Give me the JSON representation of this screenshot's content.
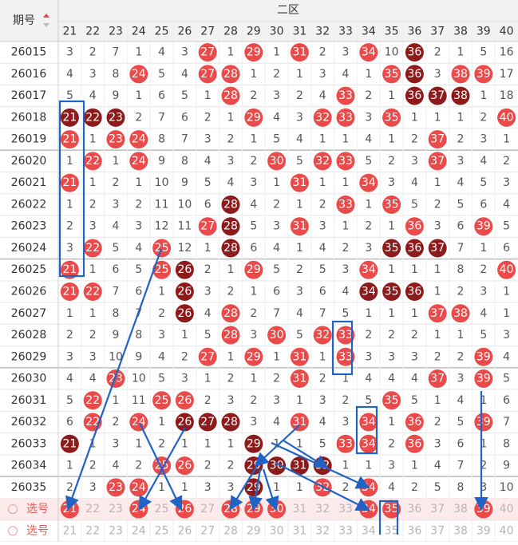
{
  "header": {
    "issue_label": "期号",
    "zone_label": "二区",
    "columns": [
      21,
      22,
      23,
      24,
      25,
      26,
      27,
      28,
      29,
      30,
      31,
      32,
      33,
      34,
      35,
      36,
      37,
      38,
      39,
      40
    ]
  },
  "ball_colors": {
    "r": "#ea4a4a",
    "d": "#8e1b1b"
  },
  "rows": [
    {
      "issue": "26015",
      "values": [
        3,
        2,
        7,
        1,
        4,
        3,
        27,
        1,
        29,
        1,
        31,
        2,
        3,
        34,
        10,
        36,
        2,
        1,
        5,
        16
      ],
      "balls": "......r.r.r..r.d...."
    },
    {
      "issue": "26016",
      "values": [
        4,
        3,
        8,
        24,
        5,
        4,
        27,
        28,
        1,
        2,
        1,
        3,
        4,
        1,
        35,
        36,
        3,
        38,
        39,
        17
      ],
      "balls": "...r..rr......rd.rr."
    },
    {
      "issue": "26017",
      "values": [
        5,
        4,
        9,
        1,
        6,
        5,
        1,
        28,
        2,
        3,
        2,
        4,
        33,
        2,
        1,
        36,
        37,
        38,
        1,
        18
      ],
      "balls": ".......r....r..ddd.."
    },
    {
      "issue": "26018",
      "values": [
        21,
        22,
        23,
        2,
        7,
        6,
        2,
        1,
        29,
        4,
        3,
        32,
        33,
        3,
        35,
        1,
        1,
        1,
        2,
        40
      ],
      "balls": "ddd.....r..rr.r....r"
    },
    {
      "issue": "26019",
      "values": [
        21,
        1,
        23,
        24,
        8,
        7,
        3,
        2,
        1,
        5,
        4,
        1,
        1,
        4,
        1,
        2,
        37,
        2,
        3,
        1
      ],
      "balls": "r.rr............r..."
    },
    {
      "issue": "26020",
      "values": [
        1,
        22,
        1,
        24,
        9,
        8,
        4,
        3,
        2,
        30,
        5,
        32,
        33,
        5,
        2,
        3,
        37,
        3,
        4,
        2
      ],
      "balls": ".r.r.....r.rr...r..."
    },
    {
      "issue": "26021",
      "values": [
        21,
        1,
        2,
        1,
        10,
        9,
        5,
        4,
        3,
        1,
        31,
        1,
        1,
        34,
        3,
        4,
        1,
        4,
        5,
        3
      ],
      "balls": "r.........r..r......"
    },
    {
      "issue": "26022",
      "values": [
        1,
        2,
        3,
        2,
        11,
        10,
        6,
        28,
        4,
        2,
        1,
        2,
        33,
        1,
        35,
        5,
        2,
        5,
        6,
        4
      ],
      "balls": ".......d....r.r....."
    },
    {
      "issue": "26023",
      "values": [
        2,
        3,
        4,
        3,
        12,
        11,
        27,
        28,
        5,
        3,
        31,
        3,
        1,
        2,
        1,
        36,
        3,
        6,
        39,
        5
      ],
      "balls": "......rd..r....r..r."
    },
    {
      "issue": "26024",
      "values": [
        3,
        22,
        5,
        4,
        25,
        12,
        1,
        28,
        6,
        4,
        1,
        4,
        2,
        3,
        35,
        36,
        37,
        7,
        1,
        6
      ],
      "balls": ".r..r..d......ddd..."
    },
    {
      "issue": "26025",
      "values": [
        21,
        1,
        6,
        5,
        25,
        26,
        2,
        1,
        29,
        5,
        2,
        5,
        3,
        34,
        1,
        1,
        1,
        8,
        2,
        40
      ],
      "balls": "r...rd..r....r.....r"
    },
    {
      "issue": "26026",
      "values": [
        21,
        22,
        7,
        6,
        1,
        26,
        3,
        2,
        1,
        6,
        3,
        6,
        4,
        34,
        35,
        36,
        1,
        2,
        3,
        1
      ],
      "balls": "rr...d.......ddd...."
    },
    {
      "issue": "26027",
      "values": [
        1,
        1,
        8,
        7,
        2,
        26,
        4,
        28,
        2,
        7,
        4,
        7,
        5,
        1,
        1,
        1,
        37,
        38,
        4,
        1
      ],
      "balls": ".....d.r........rr.."
    },
    {
      "issue": "26028",
      "values": [
        2,
        2,
        9,
        8,
        3,
        1,
        5,
        28,
        3,
        30,
        5,
        32,
        33,
        2,
        2,
        2,
        1,
        1,
        5,
        3
      ],
      "balls": ".......r.r.rr......."
    },
    {
      "issue": "26029",
      "values": [
        3,
        3,
        10,
        9,
        4,
        2,
        27,
        1,
        29,
        1,
        31,
        1,
        33,
        3,
        3,
        3,
        2,
        2,
        39,
        4
      ],
      "balls": "......r.r.r.r.....r."
    },
    {
      "issue": "26030",
      "values": [
        4,
        4,
        23,
        10,
        5,
        3,
        1,
        2,
        1,
        2,
        31,
        2,
        1,
        4,
        4,
        4,
        37,
        3,
        39,
        5
      ],
      "balls": "..r.......r.....r.r."
    },
    {
      "issue": "26031",
      "values": [
        5,
        22,
        1,
        11,
        25,
        26,
        2,
        3,
        2,
        3,
        1,
        3,
        2,
        5,
        35,
        5,
        1,
        4,
        1,
        6
      ],
      "balls": ".r..rr........r....."
    },
    {
      "issue": "26032",
      "values": [
        6,
        22,
        2,
        24,
        1,
        26,
        27,
        28,
        3,
        4,
        31,
        4,
        3,
        34,
        1,
        36,
        2,
        5,
        39,
        7
      ],
      "balls": ".r.r.ddd..r..r.r..r."
    },
    {
      "issue": "26033",
      "values": [
        21,
        1,
        3,
        1,
        2,
        1,
        1,
        1,
        29,
        1,
        1,
        5,
        33,
        34,
        2,
        36,
        3,
        6,
        1,
        8
      ],
      "balls": "d.......d...rr.r...."
    },
    {
      "issue": "26034",
      "values": [
        1,
        2,
        4,
        2,
        25,
        26,
        2,
        2,
        29,
        30,
        31,
        32,
        1,
        1,
        3,
        1,
        4,
        7,
        2,
        9
      ],
      "balls": "....rr..dddd........"
    },
    {
      "issue": "26035",
      "values": [
        2,
        3,
        23,
        24,
        1,
        1,
        3,
        3,
        29,
        1,
        1,
        32,
        2,
        34,
        4,
        2,
        5,
        8,
        3,
        10
      ],
      "balls": "..rr....d..r.r......"
    }
  ],
  "pick_rows": [
    {
      "label": "选号",
      "values": [
        21,
        22,
        23,
        24,
        25,
        26,
        27,
        28,
        29,
        30,
        31,
        32,
        33,
        34,
        35,
        36,
        37,
        38,
        39,
        40
      ],
      "balls": "r..r.r.rrr...rr...r."
    },
    {
      "label": "选号",
      "values": [
        21,
        22,
        23,
        24,
        25,
        26,
        27,
        28,
        29,
        30,
        31,
        32,
        33,
        34,
        35,
        36,
        37,
        38,
        39,
        40
      ],
      "balls": "...................."
    }
  ]
}
